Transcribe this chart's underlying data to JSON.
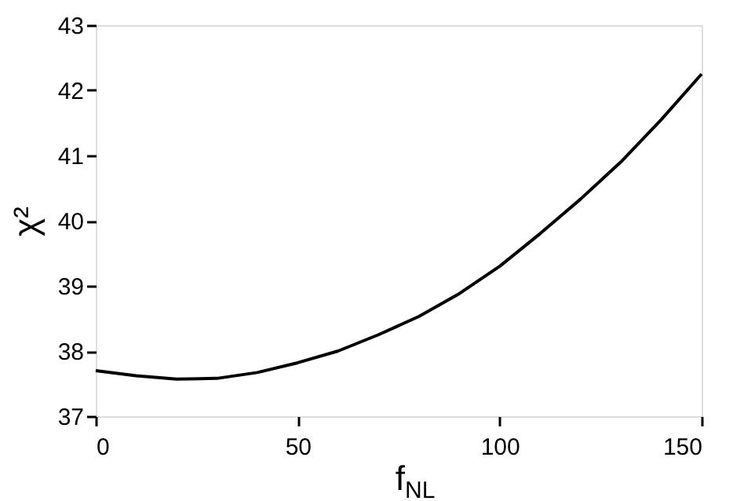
{
  "chart_data": {
    "type": "line",
    "xlabel": "f$_{NL}$",
    "ylabel": "χ²",
    "x": [
      0,
      10,
      20,
      30,
      40,
      50,
      60,
      70,
      80,
      90,
      100,
      110,
      120,
      130,
      140,
      150
    ],
    "series": [
      {
        "color": "#000000",
        "values": [
          37.7,
          37.62,
          37.57,
          37.58,
          37.67,
          37.82,
          38.0,
          38.25,
          38.53,
          38.88,
          39.3,
          39.8,
          40.33,
          40.9,
          41.55,
          42.25
        ]
      }
    ],
    "xlim": [
      0,
      150
    ],
    "xticks": [
      0,
      50,
      100,
      150
    ],
    "ylim": [
      37,
      43
    ],
    "yticks": [
      37,
      38,
      39,
      40,
      41,
      42,
      43
    ],
    "grid": false,
    "legend": false,
    "marker": "none",
    "line_style": "solid"
  }
}
